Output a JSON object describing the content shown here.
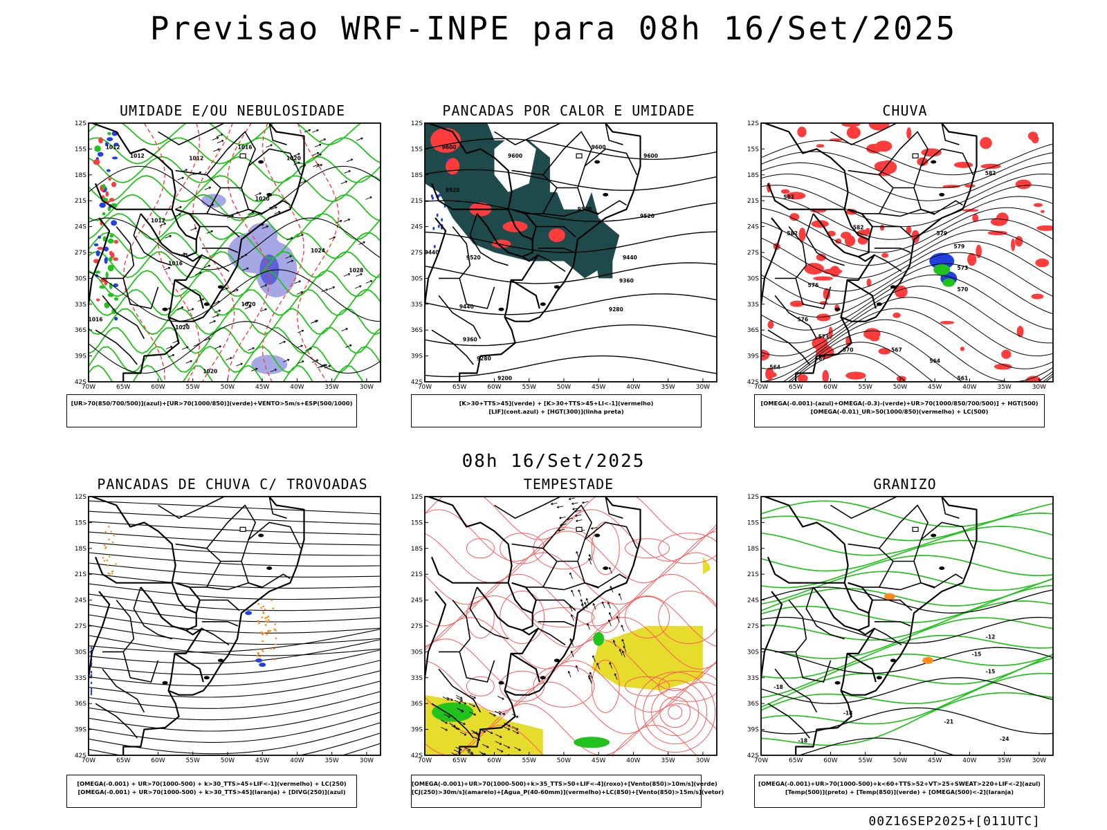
{
  "title": "Previsao WRF-INPE  para 08h 16/Set/2025",
  "mid_title": "08h 16/Set/2025",
  "footer": "00Z16SEP2025+[011UTC]",
  "axes": {
    "lat_labels": [
      "12S",
      "15S",
      "18S",
      "21S",
      "24S",
      "27S",
      "30S",
      "33S",
      "36S",
      "39S",
      "42S"
    ],
    "lon_labels": [
      "70W",
      "65W",
      "60W",
      "55W",
      "50W",
      "45W",
      "40W",
      "35W",
      "30W"
    ]
  },
  "colors": {
    "blue": "#2040e0",
    "green": "#22c21c",
    "red": "#ff3c3c",
    "dark_teal": "#1f4a4c",
    "lavender": "#a6a8e6",
    "yellow": "#e6dc2c",
    "orange": "#ff8c1a",
    "red_line": "#ff5a5a"
  },
  "panels": [
    {
      "id": "p1",
      "title": "UMIDADE E/OU NEBULOSIDADE",
      "legend": [
        "[UR>70(850/700/500)](azul)+[UR>70(1000/850)](verde)+VENTO>5m/s+ESP(500/1000)"
      ],
      "contour_labels": [
        {
          "text": "1012",
          "lon": -66.5,
          "lat": -15.0
        },
        {
          "text": "1012",
          "lon": -63.0,
          "lat": -16.0
        },
        {
          "text": "1012",
          "lon": -54.5,
          "lat": -16.3
        },
        {
          "text": "1016",
          "lon": -47.5,
          "lat": -15.0
        },
        {
          "text": "1020",
          "lon": -40.5,
          "lat": -16.3
        },
        {
          "text": "1020",
          "lon": -45.0,
          "lat": -21.0
        },
        {
          "text": "1012",
          "lon": -60.0,
          "lat": -23.5
        },
        {
          "text": "1016",
          "lon": -57.5,
          "lat": -28.5
        },
        {
          "text": "1024",
          "lon": -37.0,
          "lat": -27.0
        },
        {
          "text": "1028",
          "lon": -31.5,
          "lat": -29.3
        },
        {
          "text": "1020",
          "lon": -47.0,
          "lat": -33.2
        },
        {
          "text": "1020",
          "lon": -56.5,
          "lat": -35.9
        },
        {
          "text": "1020",
          "lon": -52.5,
          "lat": -41.0
        },
        {
          "text": "1016",
          "lon": -69.0,
          "lat": -35.0
        }
      ]
    },
    {
      "id": "p2",
      "title": "PANCADAS POR CALOR E UMIDADE",
      "legend": [
        "[K>30+TTS>45](verde) + [K>30+TTS>45+LI<-1](vermelho)",
        "[LIF](cont.azul) + [HGT(300)](linha preta)"
      ],
      "contour_labels": [
        {
          "text": "9600",
          "lon": -66.5,
          "lat": -15.0
        },
        {
          "text": "9600",
          "lon": -57.0,
          "lat": -16.0
        },
        {
          "text": "9600",
          "lon": -45.0,
          "lat": -15.0
        },
        {
          "text": "9600",
          "lon": -37.5,
          "lat": -16.0
        },
        {
          "text": "9520",
          "lon": -66.0,
          "lat": -20.0
        },
        {
          "text": "9520",
          "lon": -47.0,
          "lat": -22.2
        },
        {
          "text": "9520",
          "lon": -38.0,
          "lat": -23.0
        },
        {
          "text": "9440",
          "lon": -69.0,
          "lat": -27.2
        },
        {
          "text": "9520",
          "lon": -63.0,
          "lat": -27.8
        },
        {
          "text": "9440",
          "lon": -40.5,
          "lat": -27.8
        },
        {
          "text": "9360",
          "lon": -41.0,
          "lat": -30.5
        },
        {
          "text": "9440",
          "lon": -64.0,
          "lat": -33.5
        },
        {
          "text": "9280",
          "lon": -42.5,
          "lat": -33.8
        },
        {
          "text": "9360",
          "lon": -63.5,
          "lat": -37.3
        },
        {
          "text": "9280",
          "lon": -61.5,
          "lat": -39.5
        },
        {
          "text": "9200",
          "lon": -58.5,
          "lat": -41.8
        }
      ]
    },
    {
      "id": "p3",
      "title": "CHUVA",
      "legend": [
        "[OMEGA(-0.001)-(azul)+OMEGA(-0.3)-(verde)+UR>70(1000/850/700/500)] + HGT(500)",
        "[OMEGA(-0.01)_UR>50(1000/850)(vermelho) + LC(500)"
      ],
      "contour_labels": [
        {
          "text": "582",
          "lon": -66.0,
          "lat": -20.8
        },
        {
          "text": "582",
          "lon": -65.5,
          "lat": -25.0
        },
        {
          "text": "582",
          "lon": -56.0,
          "lat": -24.3
        },
        {
          "text": "582",
          "lon": -37.0,
          "lat": -18.0
        },
        {
          "text": "579",
          "lon": -44.0,
          "lat": -25.0
        },
        {
          "text": "579",
          "lon": -41.5,
          "lat": -26.5
        },
        {
          "text": "576",
          "lon": -62.5,
          "lat": -31.0
        },
        {
          "text": "573",
          "lon": -41.0,
          "lat": -29.0
        },
        {
          "text": "570",
          "lon": -41.0,
          "lat": -31.5
        },
        {
          "text": "576",
          "lon": -64.0,
          "lat": -35.0
        },
        {
          "text": "573",
          "lon": -61.0,
          "lat": -37.0
        },
        {
          "text": "570",
          "lon": -57.5,
          "lat": -38.5
        },
        {
          "text": "567",
          "lon": -61.5,
          "lat": -39.5
        },
        {
          "text": "567",
          "lon": -50.5,
          "lat": -38.5
        },
        {
          "text": "564",
          "lon": -68.0,
          "lat": -40.5
        },
        {
          "text": "564",
          "lon": -45.0,
          "lat": -39.8
        },
        {
          "text": "561",
          "lon": -41.0,
          "lat": -41.8
        }
      ]
    },
    {
      "id": "p4",
      "title": "PANCADAS DE CHUVA C/ TROVOADAS",
      "legend": [
        "[OMEGA(-0.001) + UR>70(1000-500) + k>30_TTS>45+LIF<-1](vermelho) + LC(250)",
        "[OMEGA(-0.001) + UR>70(1000-500) + k>30_TTS>45](laranja) + [DIVG(250)](azul)"
      ],
      "contour_labels": []
    },
    {
      "id": "p5",
      "title": "TEMPESTADE",
      "legend": [
        "[OMEGA(-0.001)+UR>70(1000-500)+k>35_TTS>50+LIF<-4](roxo)+[Vento(850)>10m/s](verde)",
        "[CJ(250)>30m/s](amarelo)+[Agua_P(40-60mm)](vermelho)+LC(850)+[Vento(850)>15m/s](vetor)"
      ],
      "contour_labels": []
    },
    {
      "id": "p6",
      "title": "GRANIZO",
      "legend": [
        "[OMEGA(-0.001)+UR>70(1000-500)+k<60+TTS>52+VT>25+SWEAT>220+LIF<-2](azul)",
        "[Temp(500)](preto) + [Temp(850)](verde) + [OMEGA(500)<-2](laranja)"
      ],
      "contour_labels": [
        {
          "text": "-12",
          "lon": -37.0,
          "lat": -28.5
        },
        {
          "text": "-15",
          "lon": -39.0,
          "lat": -30.5
        },
        {
          "text": "-15",
          "lon": -37.0,
          "lat": -32.5
        },
        {
          "text": "-18",
          "lon": -67.5,
          "lat": -34.3
        },
        {
          "text": "-18",
          "lon": -57.5,
          "lat": -37.3
        },
        {
          "text": "-21",
          "lon": -43.0,
          "lat": -38.3
        },
        {
          "text": "-18",
          "lon": -64.0,
          "lat": -40.5
        },
        {
          "text": "-24",
          "lon": -35.0,
          "lat": -40.3
        }
      ]
    }
  ]
}
